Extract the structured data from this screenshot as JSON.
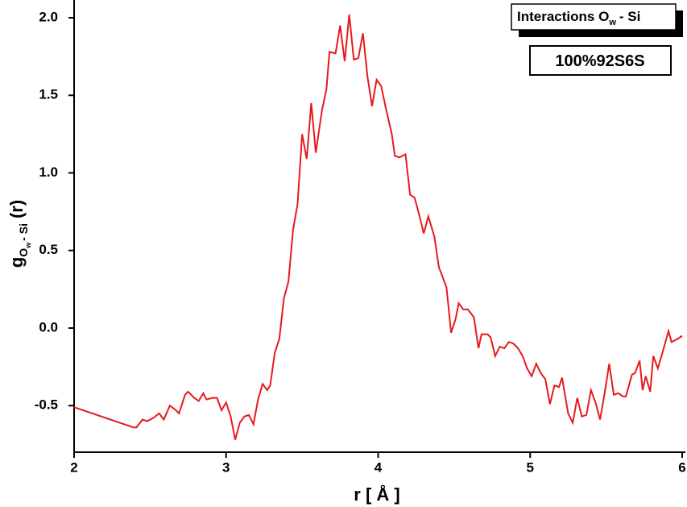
{
  "chart_data": {
    "type": "line",
    "legend_title": {
      "text": "Interactions O",
      "sub": "w",
      "tail": "- Si"
    },
    "annotation": "100%92S6S",
    "xlabel": "r [ Å ]",
    "ylabel": {
      "base": "g",
      "sub": "O",
      "subsub": "w",
      "sub2": "- Si",
      "tail": "(r)"
    },
    "xlim": [
      2,
      6
    ],
    "xticks": [
      2,
      3,
      4,
      5,
      6
    ],
    "ylim": [
      -0.8,
      2.1
    ],
    "yticks": [
      -0.5,
      {
        "value": 0,
        "label": "0.0"
      },
      0.5,
      {
        "value": 1,
        "label": "1.0"
      },
      1.5,
      {
        "value": 2,
        "label": "2.0"
      }
    ],
    "series": [
      {
        "color": "#e8191c",
        "x": [
          2.0,
          2.39,
          2.41,
          2.45,
          2.48,
          2.52,
          2.56,
          2.59,
          2.63,
          2.67,
          2.69,
          2.73,
          2.75,
          2.79,
          2.82,
          2.85,
          2.87,
          2.91,
          2.94,
          2.97,
          3.0,
          3.03,
          3.06,
          3.09,
          3.12,
          3.15,
          3.18,
          3.21,
          3.24,
          3.27,
          3.29,
          3.32,
          3.35,
          3.38,
          3.41,
          3.44,
          3.47,
          3.5,
          3.53,
          3.56,
          3.59,
          3.63,
          3.66,
          3.68,
          3.72,
          3.75,
          3.78,
          3.81,
          3.84,
          3.87,
          3.9,
          3.93,
          3.96,
          3.99,
          4.02,
          4.05,
          4.09,
          4.11,
          4.14,
          4.18,
          4.21,
          4.24,
          4.27,
          4.3,
          4.33,
          4.37,
          4.4,
          4.42,
          4.45,
          4.48,
          4.51,
          4.53,
          4.56,
          4.59,
          4.63,
          4.66,
          4.68,
          4.72,
          4.74,
          4.77,
          4.8,
          4.83,
          4.86,
          4.89,
          4.92,
          4.95,
          4.98,
          5.01,
          5.04,
          5.07,
          5.1,
          5.13,
          5.16,
          5.19,
          5.21,
          5.25,
          5.28,
          5.31,
          5.34,
          5.37,
          5.4,
          5.43,
          5.46,
          5.49,
          5.52,
          5.55,
          5.58,
          5.61,
          5.63,
          5.67,
          5.69,
          5.72,
          5.74,
          5.76,
          5.79,
          5.81,
          5.84,
          5.87,
          5.91,
          5.93,
          5.97,
          6.0
        ],
        "values": [
          -0.51,
          -0.64,
          -0.64,
          -0.59,
          -0.6,
          -0.58,
          -0.55,
          -0.59,
          -0.5,
          -0.53,
          -0.55,
          -0.43,
          -0.41,
          -0.45,
          -0.47,
          -0.42,
          -0.46,
          -0.45,
          -0.45,
          -0.53,
          -0.48,
          -0.57,
          -0.72,
          -0.61,
          -0.57,
          -0.56,
          -0.62,
          -0.46,
          -0.36,
          -0.4,
          -0.37,
          -0.16,
          -0.07,
          0.19,
          0.3,
          0.63,
          0.8,
          1.25,
          1.09,
          1.45,
          1.13,
          1.4,
          1.54,
          1.78,
          1.77,
          1.95,
          1.72,
          2.02,
          1.73,
          1.74,
          1.9,
          1.62,
          1.43,
          1.6,
          1.56,
          1.42,
          1.25,
          1.11,
          1.1,
          1.12,
          0.86,
          0.84,
          0.73,
          0.61,
          0.72,
          0.59,
          0.39,
          0.34,
          0.26,
          -0.03,
          0.06,
          0.16,
          0.12,
          0.12,
          0.07,
          -0.13,
          -0.04,
          -0.04,
          -0.06,
          -0.18,
          -0.12,
          -0.13,
          -0.09,
          -0.1,
          -0.13,
          -0.18,
          -0.26,
          -0.31,
          -0.23,
          -0.29,
          -0.33,
          -0.49,
          -0.37,
          -0.38,
          -0.32,
          -0.55,
          -0.61,
          -0.45,
          -0.57,
          -0.56,
          -0.4,
          -0.48,
          -0.59,
          -0.42,
          -0.23,
          -0.43,
          -0.42,
          -0.44,
          -0.44,
          -0.3,
          -0.29,
          -0.21,
          -0.4,
          -0.31,
          -0.41,
          -0.18,
          -0.26,
          -0.16,
          -0.02,
          -0.09,
          -0.07,
          -0.05
        ]
      }
    ]
  }
}
